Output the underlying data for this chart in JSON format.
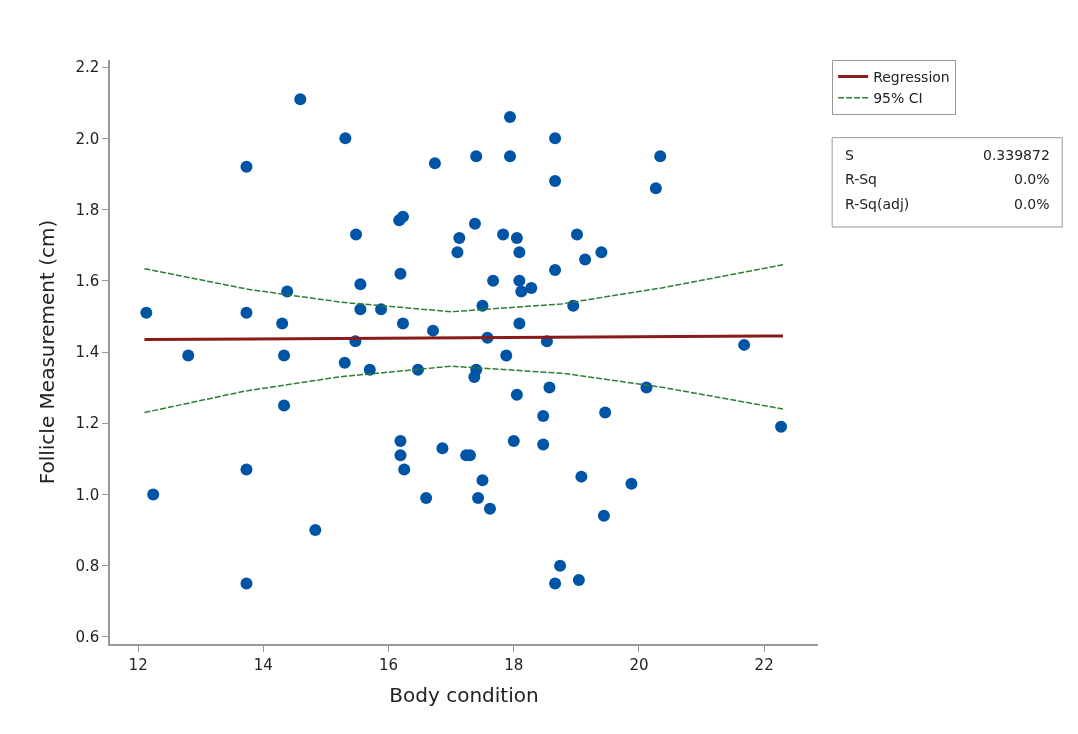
{
  "chart_data": {
    "type": "scatter",
    "xlabel": "Body condition",
    "ylabel": "Follicle Measurement (cm)",
    "xlim": [
      11.55,
      22.86
    ],
    "ylim": [
      0.58,
      2.22
    ],
    "xticks": [
      12,
      14,
      16,
      18,
      20,
      22
    ],
    "yticks": [
      0.6,
      0.8,
      {
        "value": 1.0,
        "label": "1.0"
      },
      1.2,
      1.4,
      1.6,
      1.8,
      {
        "value": 2.0,
        "label": "2.0"
      },
      2.2
    ],
    "legend": "top right",
    "marker": "circle",
    "annotations": [
      "S",
      "0.339872",
      "R-Sq",
      "0.0%",
      "R-Sq(adj)",
      "0.0%"
    ],
    "series": [
      {
        "color": "#0054a6",
        "x": [
          12.13,
          12.24,
          12.8,
          13.73,
          13.73,
          13.73,
          13.73,
          14.3,
          14.33,
          14.33,
          14.38,
          14.59,
          14.83,
          15.31,
          15.3,
          15.48,
          15.47,
          15.55,
          15.55,
          15.7,
          15.88,
          16.17,
          16.23,
          16.19,
          16.23,
          16.19,
          16.19,
          16.25,
          16.47,
          16.6,
          16.71,
          16.74,
          16.86,
          17.13,
          17.1,
          17.24,
          17.3,
          17.4,
          17.38,
          17.37,
          17.4,
          17.5,
          17.5,
          17.43,
          17.58,
          17.62,
          17.67,
          17.83,
          17.88,
          17.94,
          17.94,
          18.0,
          18.05,
          18.09,
          18.09,
          18.12,
          18.09,
          18.05,
          18.28,
          18.47,
          18.47,
          18.53,
          18.57,
          18.66,
          18.66,
          18.66,
          18.66,
          18.74,
          19.01,
          18.95,
          19.04,
          19.08,
          19.14,
          19.4,
          19.44,
          19.46,
          19.88,
          20.12,
          20.27,
          20.34,
          21.68,
          22.27
        ],
        "values": [
          1.51,
          1.0,
          1.39,
          1.92,
          1.51,
          1.07,
          0.75,
          1.48,
          1.39,
          1.25,
          1.57,
          2.11,
          0.9,
          2.0,
          1.37,
          1.73,
          1.43,
          1.52,
          1.59,
          1.35,
          1.52,
          1.77,
          1.78,
          1.62,
          1.48,
          1.15,
          1.11,
          1.07,
          1.35,
          0.99,
          1.46,
          1.93,
          1.13,
          1.72,
          1.68,
          1.11,
          1.11,
          1.95,
          1.76,
          1.33,
          1.35,
          1.53,
          1.04,
          0.99,
          1.44,
          0.96,
          1.6,
          1.73,
          1.39,
          2.06,
          1.95,
          1.15,
          1.72,
          1.68,
          1.6,
          1.57,
          1.48,
          1.28,
          1.58,
          1.22,
          1.14,
          1.43,
          1.3,
          2.0,
          1.88,
          1.63,
          0.75,
          0.8,
          1.73,
          1.53,
          0.76,
          1.05,
          1.66,
          1.68,
          0.94,
          1.23,
          1.03,
          1.3,
          1.86,
          1.95,
          1.42,
          1.19
        ]
      },
      {
        "type": "line",
        "name": "Regression",
        "color": "#8b1a1a",
        "line_style": "solid",
        "marker": "none",
        "x": [
          12.1,
          22.3
        ],
        "values": [
          1.435,
          1.445
        ]
      },
      {
        "type": "line",
        "name": "95% CI",
        "color": "#2e7d32",
        "line_style": "dashed",
        "marker": "none",
        "x": [
          12.1,
          13.76,
          15.24,
          17.0,
          18.76,
          20.36,
          22.3
        ],
        "values": [
          1.634,
          1.576,
          1.54,
          1.513,
          1.535,
          1.58,
          1.645
        ]
      },
      {
        "type": "line",
        "color": "#2e7d32",
        "line_style": "dashed",
        "marker": "none",
        "x": [
          12.1,
          13.7,
          15.2,
          17.0,
          18.8,
          20.4,
          22.3
        ],
        "values": [
          1.23,
          1.29,
          1.33,
          1.36,
          1.34,
          1.3,
          1.24
        ]
      }
    ]
  }
}
